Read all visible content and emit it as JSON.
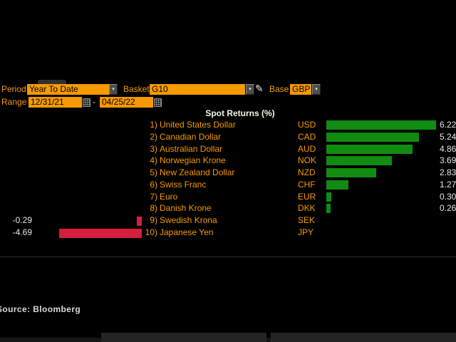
{
  "toolbar": {
    "period": {
      "label": "Period",
      "value": "Year To Date"
    },
    "basket": {
      "label": "Basket",
      "value": "G10"
    },
    "base": {
      "label": "Base",
      "value": "GBP"
    },
    "range": {
      "label": "Range",
      "start": "12/31/21",
      "separator": "-",
      "end": "04/25/22"
    },
    "icons": {
      "dropdown": "▾",
      "pencil": "✎",
      "calendar": "calendar-grid-icon"
    }
  },
  "chart": {
    "title": "Spot Returns (%)",
    "source": "Source: Bloomberg"
  },
  "chart_data": {
    "type": "bar",
    "orientation": "horizontal",
    "title": "Spot Returns (%)",
    "categories": [
      "United States Dollar",
      "Canadian Dollar",
      "Australian Dollar",
      "Norwegian Krone",
      "New Zealand Dollar",
      "Swiss Franc",
      "Euro",
      "Danish Krone",
      "Swedish Krona",
      "Japanese Yen"
    ],
    "codes": [
      "USD",
      "CAD",
      "AUD",
      "NOK",
      "NZD",
      "CHF",
      "EUR",
      "DKK",
      "SEK",
      "JPY"
    ],
    "row_numbers": [
      "1)",
      "2)",
      "3)",
      "4)",
      "5)",
      "6)",
      "7)",
      "8)",
      "9)",
      "10)"
    ],
    "values": [
      6.22,
      5.24,
      4.86,
      3.69,
      2.83,
      1.27,
      0.3,
      0.26,
      -0.29,
      -4.69
    ],
    "value_labels": [
      "6.22",
      "5.24",
      "4.86",
      "3.69",
      "2.83",
      "1.27",
      "0.30",
      "0.26",
      "-0.29",
      "-4.69"
    ],
    "positive_color": "#108c10",
    "negative_color": "#d51f3c",
    "text_color": "#f79a00",
    "value_text_color": "#e8e8e8",
    "source": "Source: Bloomberg",
    "legend": "none",
    "grid": "off"
  }
}
